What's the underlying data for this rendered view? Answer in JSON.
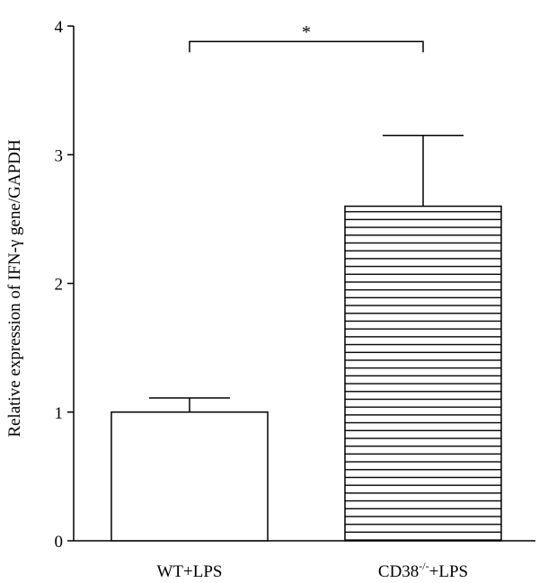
{
  "chart_data": {
    "type": "bar",
    "title": "",
    "xlabel": "",
    "ylabel": "Relative expression of IFN-γ gene/GAPDH",
    "ylim": [
      0,
      4
    ],
    "yticks": [
      "0",
      "1",
      "2",
      "3",
      "4"
    ],
    "grid": false,
    "categories": [
      {
        "base": "WT+LPS",
        "sup": "",
        "rest": ""
      },
      {
        "base": "CD38",
        "sup": "-/-",
        "rest": "+LPS"
      }
    ],
    "values": [
      1.0,
      2.6
    ],
    "errors": [
      0.11,
      0.55
    ],
    "fills": [
      "solid-white",
      "horizontal-stripes"
    ],
    "significance": {
      "between": [
        0,
        1
      ],
      "label": "*",
      "level": 3.88
    }
  },
  "colors": {
    "axis": "#000000",
    "bar_fill": "#ffffff",
    "stroke": "#000000"
  }
}
